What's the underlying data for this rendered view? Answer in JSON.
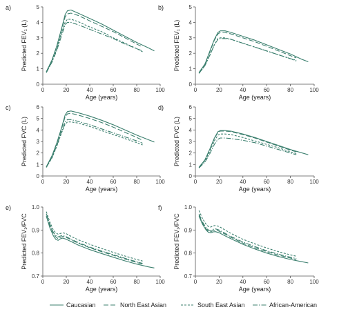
{
  "colors": {
    "line": "#3b7f6e",
    "axis": "#555555",
    "text": "#222222"
  },
  "legend": [
    {
      "name": "Caucasian",
      "dash": "solid"
    },
    {
      "name": "North East Asian",
      "dash": "longdash"
    },
    {
      "name": "South East Asian",
      "dash": "shortdash"
    },
    {
      "name": "African-American",
      "dash": "dashdot"
    }
  ],
  "chart_data": [
    {
      "panel": "a)",
      "type": "line",
      "xlabel": "Age (years)",
      "ylabel": "Predicted FEV₁ (L)",
      "xlim": [
        0,
        100
      ],
      "ylim": [
        0,
        5
      ],
      "xticks": [
        0,
        20,
        40,
        60,
        80,
        100
      ],
      "yticks": [
        0,
        1,
        2,
        3,
        4,
        5
      ],
      "series": [
        {
          "name": "Caucasian",
          "x": [
            3,
            8,
            12,
            16,
            19,
            21,
            24,
            30,
            40,
            50,
            60,
            70,
            80,
            90,
            95
          ],
          "y": [
            0.8,
            1.6,
            2.5,
            3.6,
            4.5,
            4.75,
            4.8,
            4.6,
            4.25,
            3.9,
            3.5,
            3.1,
            2.7,
            2.35,
            2.15
          ]
        },
        {
          "name": "North East Asian",
          "x": [
            3,
            8,
            12,
            16,
            19,
            21,
            24,
            30,
            40,
            50,
            60,
            70,
            80,
            85
          ],
          "y": [
            0.8,
            1.6,
            2.45,
            3.5,
            4.35,
            4.55,
            4.6,
            4.45,
            4.1,
            3.75,
            3.4,
            3.0,
            2.6,
            2.4
          ]
        },
        {
          "name": "South East Asian",
          "x": [
            3,
            8,
            12,
            16,
            19,
            21,
            24,
            30,
            40,
            50,
            60,
            70,
            80,
            85
          ],
          "y": [
            0.75,
            1.5,
            2.3,
            3.3,
            4.0,
            4.2,
            4.2,
            4.05,
            3.7,
            3.4,
            3.0,
            2.65,
            2.3,
            2.1
          ]
        },
        {
          "name": "African-American",
          "x": [
            3,
            8,
            12,
            16,
            19,
            21,
            24,
            30,
            40,
            50,
            60,
            70,
            80,
            85
          ],
          "y": [
            0.75,
            1.45,
            2.2,
            3.15,
            3.85,
            4.0,
            4.0,
            3.85,
            3.55,
            3.25,
            2.95,
            2.6,
            2.3,
            2.15
          ]
        }
      ]
    },
    {
      "panel": "b)",
      "type": "line",
      "xlabel": "Age (years)",
      "ylabel": "Predicted FEV₁ (L)",
      "xlim": [
        0,
        100
      ],
      "ylim": [
        0,
        5
      ],
      "xticks": [
        0,
        20,
        40,
        60,
        80,
        100
      ],
      "yticks": [
        0,
        1,
        2,
        3,
        4,
        5
      ],
      "series": [
        {
          "name": "Caucasian",
          "x": [
            3,
            8,
            12,
            16,
            19,
            21,
            25,
            30,
            40,
            50,
            60,
            70,
            80,
            90,
            95
          ],
          "y": [
            0.75,
            1.3,
            2.1,
            2.9,
            3.35,
            3.45,
            3.45,
            3.35,
            3.1,
            2.85,
            2.55,
            2.25,
            1.95,
            1.6,
            1.45
          ]
        },
        {
          "name": "North East Asian",
          "x": [
            3,
            8,
            12,
            16,
            19,
            21,
            25,
            30,
            40,
            50,
            60,
            70,
            80,
            85
          ],
          "y": [
            0.75,
            1.3,
            2.05,
            2.85,
            3.25,
            3.35,
            3.35,
            3.25,
            3.0,
            2.75,
            2.45,
            2.15,
            1.85,
            1.7
          ]
        },
        {
          "name": "South East Asian",
          "x": [
            3,
            8,
            12,
            16,
            19,
            21,
            25,
            30,
            40,
            50,
            60,
            70,
            80,
            85
          ],
          "y": [
            0.7,
            1.2,
            1.85,
            2.55,
            2.95,
            3.0,
            3.0,
            2.9,
            2.65,
            2.4,
            2.15,
            1.9,
            1.65,
            1.5
          ]
        },
        {
          "name": "African-American",
          "x": [
            3,
            8,
            12,
            16,
            19,
            21,
            25,
            30,
            40,
            50,
            60,
            70,
            80,
            85
          ],
          "y": [
            0.7,
            1.2,
            1.85,
            2.55,
            2.9,
            2.95,
            2.95,
            2.9,
            2.65,
            2.4,
            2.15,
            1.9,
            1.65,
            1.55
          ]
        }
      ]
    },
    {
      "panel": "c)",
      "type": "line",
      "xlabel": "Age (years)",
      "ylabel": "Predicted FVC (L)",
      "xlim": [
        0,
        100
      ],
      "ylim": [
        0,
        6
      ],
      "xticks": [
        0,
        20,
        40,
        60,
        80,
        100
      ],
      "yticks": [
        0,
        1,
        2,
        3,
        4,
        5,
        6
      ],
      "series": [
        {
          "name": "Caucasian",
          "x": [
            3,
            8,
            12,
            16,
            19,
            21,
            24,
            30,
            40,
            50,
            60,
            70,
            80,
            90,
            95
          ],
          "y": [
            0.8,
            1.8,
            2.9,
            4.2,
            5.3,
            5.6,
            5.65,
            5.5,
            5.2,
            4.85,
            4.45,
            4.0,
            3.55,
            3.15,
            2.95
          ]
        },
        {
          "name": "North East Asian",
          "x": [
            3,
            8,
            12,
            16,
            19,
            21,
            24,
            30,
            40,
            50,
            60,
            70,
            80,
            85
          ],
          "y": [
            0.8,
            1.75,
            2.85,
            4.1,
            5.15,
            5.4,
            5.45,
            5.3,
            5.0,
            4.65,
            4.25,
            3.8,
            3.35,
            3.1
          ]
        },
        {
          "name": "South East Asian",
          "x": [
            3,
            8,
            12,
            16,
            19,
            21,
            24,
            30,
            40,
            50,
            60,
            70,
            80,
            85
          ],
          "y": [
            0.75,
            1.6,
            2.6,
            3.75,
            4.5,
            4.7,
            4.7,
            4.6,
            4.3,
            3.95,
            3.6,
            3.25,
            2.9,
            2.7
          ]
        },
        {
          "name": "African-American",
          "x": [
            3,
            8,
            12,
            16,
            19,
            21,
            24,
            30,
            40,
            50,
            60,
            70,
            80,
            85
          ],
          "y": [
            0.75,
            1.65,
            2.65,
            3.85,
            4.7,
            4.9,
            4.9,
            4.75,
            4.45,
            4.1,
            3.75,
            3.4,
            3.05,
            2.85
          ]
        }
      ]
    },
    {
      "panel": "d)",
      "type": "line",
      "xlabel": "Age (years)",
      "ylabel": "Predicted FVC (L)",
      "xlim": [
        0,
        100
      ],
      "ylim": [
        0,
        6
      ],
      "xticks": [
        0,
        20,
        40,
        60,
        80,
        100
      ],
      "yticks": [
        0,
        1,
        2,
        3,
        4,
        5,
        6
      ],
      "series": [
        {
          "name": "Caucasian",
          "x": [
            3,
            8,
            12,
            16,
            19,
            21,
            25,
            30,
            40,
            50,
            60,
            70,
            80,
            90,
            95
          ],
          "y": [
            0.75,
            1.4,
            2.3,
            3.3,
            3.85,
            3.95,
            3.95,
            3.9,
            3.65,
            3.35,
            3.0,
            2.65,
            2.3,
            2.0,
            1.85
          ]
        },
        {
          "name": "North East Asian",
          "x": [
            3,
            8,
            12,
            16,
            19,
            21,
            25,
            30,
            40,
            50,
            60,
            70,
            80,
            85
          ],
          "y": [
            0.75,
            1.4,
            2.25,
            3.25,
            3.8,
            3.9,
            3.9,
            3.85,
            3.6,
            3.3,
            2.95,
            2.6,
            2.25,
            2.1
          ]
        },
        {
          "name": "South East Asian",
          "x": [
            3,
            8,
            12,
            16,
            19,
            21,
            25,
            30,
            40,
            50,
            60,
            70,
            80,
            85
          ],
          "y": [
            0.7,
            1.3,
            2.1,
            3.05,
            3.55,
            3.65,
            3.65,
            3.6,
            3.35,
            3.05,
            2.75,
            2.45,
            2.1,
            1.95
          ]
        },
        {
          "name": "African-American",
          "x": [
            3,
            8,
            12,
            16,
            19,
            21,
            25,
            30,
            40,
            50,
            60,
            70,
            80,
            85
          ],
          "y": [
            0.7,
            1.2,
            1.9,
            2.75,
            3.2,
            3.3,
            3.3,
            3.25,
            3.1,
            2.9,
            2.6,
            2.3,
            2.0,
            1.85
          ]
        }
      ]
    },
    {
      "panel": "e)",
      "type": "line",
      "xlabel": "Age (years)",
      "ylabel": "Predicted FEV₁/FVC",
      "xlim": [
        0,
        100
      ],
      "ylim": [
        0.7,
        1.0
      ],
      "xticks": [
        0,
        20,
        40,
        60,
        80,
        100
      ],
      "yticks": [
        0.7,
        0.8,
        0.9,
        1.0
      ],
      "series": [
        {
          "name": "Caucasian",
          "x": [
            3,
            6,
            9,
            11,
            13,
            15,
            17,
            20,
            25,
            30,
            40,
            50,
            60,
            70,
            80,
            90,
            95
          ],
          "y": [
            0.96,
            0.91,
            0.875,
            0.86,
            0.855,
            0.862,
            0.865,
            0.86,
            0.848,
            0.835,
            0.815,
            0.798,
            0.782,
            0.766,
            0.752,
            0.74,
            0.735
          ]
        },
        {
          "name": "North East Asian",
          "x": [
            3,
            6,
            9,
            11,
            13,
            15,
            17,
            20,
            25,
            30,
            40,
            50,
            60,
            70,
            80,
            85
          ],
          "y": [
            0.96,
            0.92,
            0.885,
            0.87,
            0.862,
            0.868,
            0.872,
            0.868,
            0.855,
            0.843,
            0.823,
            0.806,
            0.79,
            0.774,
            0.759,
            0.752
          ]
        },
        {
          "name": "South East Asian",
          "x": [
            3,
            6,
            9,
            11,
            13,
            15,
            17,
            20,
            25,
            30,
            40,
            50,
            60,
            70,
            80,
            85
          ],
          "y": [
            0.98,
            0.935,
            0.9,
            0.888,
            0.882,
            0.885,
            0.888,
            0.884,
            0.87,
            0.858,
            0.838,
            0.82,
            0.803,
            0.787,
            0.772,
            0.765
          ]
        },
        {
          "name": "African-American",
          "x": [
            3,
            6,
            9,
            11,
            13,
            15,
            17,
            20,
            25,
            30,
            40,
            50,
            60,
            70,
            80,
            85
          ],
          "y": [
            0.97,
            0.925,
            0.89,
            0.876,
            0.87,
            0.874,
            0.876,
            0.871,
            0.858,
            0.846,
            0.826,
            0.809,
            0.793,
            0.777,
            0.762,
            0.755
          ]
        }
      ]
    },
    {
      "panel": "f)",
      "type": "line",
      "xlabel": "Age (years)",
      "ylabel": "Predicted FEV₁/FVC",
      "xlim": [
        0,
        100
      ],
      "ylim": [
        0.7,
        1.0
      ],
      "xticks": [
        0,
        20,
        40,
        60,
        80,
        100
      ],
      "yticks": [
        0.7,
        0.8,
        0.9,
        1.0
      ],
      "series": [
        {
          "name": "Caucasian",
          "x": [
            3,
            6,
            9,
            11,
            13,
            15,
            17,
            20,
            25,
            30,
            40,
            50,
            60,
            70,
            80,
            90,
            95
          ],
          "y": [
            0.96,
            0.925,
            0.9,
            0.89,
            0.888,
            0.892,
            0.893,
            0.888,
            0.875,
            0.862,
            0.838,
            0.818,
            0.8,
            0.785,
            0.772,
            0.762,
            0.757
          ]
        },
        {
          "name": "North East Asian",
          "x": [
            3,
            6,
            9,
            11,
            13,
            15,
            17,
            20,
            25,
            30,
            40,
            50,
            60,
            70,
            80,
            85
          ],
          "y": [
            0.965,
            0.93,
            0.905,
            0.895,
            0.893,
            0.898,
            0.9,
            0.895,
            0.882,
            0.868,
            0.843,
            0.823,
            0.806,
            0.791,
            0.778,
            0.772
          ]
        },
        {
          "name": "South East Asian",
          "x": [
            3,
            6,
            9,
            11,
            13,
            15,
            17,
            20,
            25,
            30,
            40,
            50,
            60,
            70,
            80,
            85
          ],
          "y": [
            0.985,
            0.95,
            0.925,
            0.915,
            0.913,
            0.918,
            0.92,
            0.915,
            0.9,
            0.885,
            0.86,
            0.84,
            0.822,
            0.806,
            0.792,
            0.786
          ]
        },
        {
          "name": "African-American",
          "x": [
            3,
            6,
            9,
            11,
            13,
            15,
            17,
            20,
            25,
            30,
            40,
            50,
            60,
            70,
            80,
            85
          ],
          "y": [
            0.97,
            0.935,
            0.91,
            0.9,
            0.898,
            0.903,
            0.905,
            0.9,
            0.886,
            0.872,
            0.848,
            0.828,
            0.81,
            0.795,
            0.782,
            0.776
          ]
        }
      ]
    }
  ]
}
